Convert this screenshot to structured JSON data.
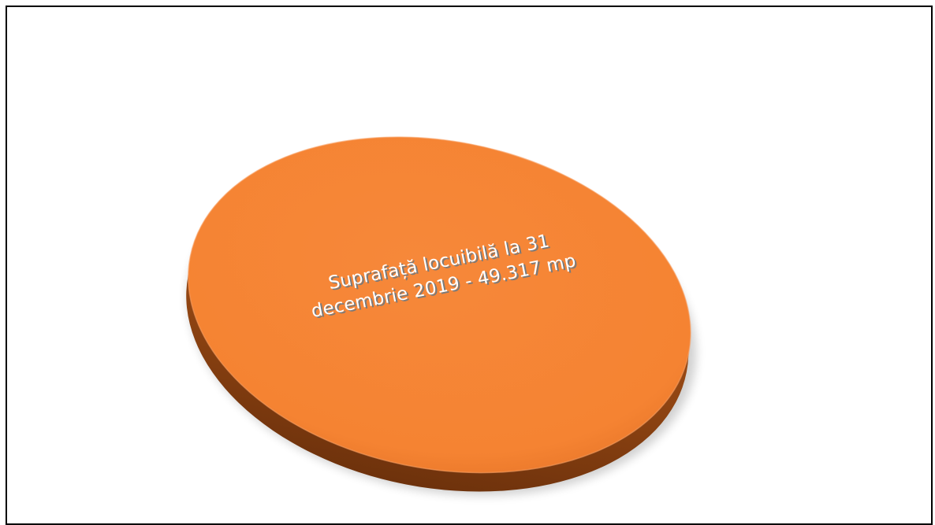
{
  "chart_data": {
    "type": "pie",
    "categories": [
      "Suprafață locuibilă la 31 decembrie 2019 - 49.317 mp"
    ],
    "values": [
      49317
    ],
    "slices": [
      {
        "label_line1": "Suprafață locuibilă la 31",
        "label_line2": "decembrie 2019 - 49.317 mp",
        "value": 49317,
        "color": "#F58332"
      }
    ],
    "style": "3d",
    "legend": "none"
  }
}
